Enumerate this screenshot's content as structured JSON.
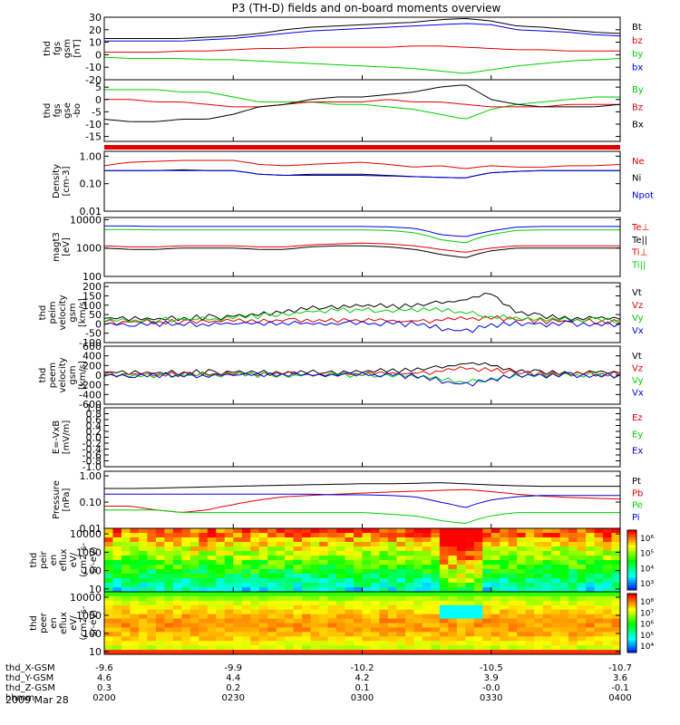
{
  "title": "P3 (TH-D) fields and on-board moments overview",
  "date": "2009 Mar 28",
  "colors": {
    "black": "#000000",
    "red": "#e00000",
    "green": "#00d000",
    "blue": "#0000e0"
  },
  "chart_data": [
    {
      "type": "line",
      "ylabel": [
        "thd",
        "fgs",
        "gsm",
        "[nT]"
      ],
      "ylim": [
        -20,
        30
      ],
      "yticks": [
        "30",
        "20",
        "10",
        "0",
        "-10",
        "-20"
      ],
      "legend": [
        "Bt",
        "bz",
        "by",
        "bx"
      ],
      "series": [
        {
          "name": "Bt",
          "color": "black",
          "values": [
            13,
            13,
            13,
            13,
            14,
            15,
            17,
            20,
            22,
            23,
            24,
            25,
            26,
            28,
            29,
            27,
            23,
            22,
            20,
            18,
            17
          ]
        },
        {
          "name": "bz",
          "color": "red",
          "values": [
            2,
            2,
            2,
            3,
            3,
            4,
            5,
            5,
            6,
            6,
            6,
            6,
            7,
            7,
            6,
            5,
            4,
            4,
            3,
            3,
            3
          ]
        },
        {
          "name": "by",
          "color": "green",
          "values": [
            -2,
            -3,
            -3,
            -3,
            -4,
            -4,
            -5,
            -6,
            -7,
            -8,
            -9,
            -10,
            -11,
            -13,
            -15,
            -12,
            -9,
            -7,
            -5,
            -4,
            -3
          ]
        },
        {
          "name": "bx",
          "color": "blue",
          "values": [
            11,
            11,
            11,
            11,
            12,
            13,
            15,
            17,
            19,
            20,
            21,
            22,
            23,
            24,
            25,
            24,
            20,
            19,
            18,
            16,
            15
          ]
        }
      ]
    },
    {
      "type": "line",
      "ylabel": [
        "thd",
        "fgs",
        "gse",
        "-bo"
      ],
      "ylim": [
        -17,
        8
      ],
      "yticks": [
        "5",
        "0",
        "-5",
        "-10",
        "-15"
      ],
      "legend": [
        "By",
        "Bz",
        "Bx"
      ],
      "series": [
        {
          "name": "By",
          "color": "green",
          "values": [
            4,
            4,
            4,
            3,
            3,
            1,
            -1,
            -1,
            -1,
            -2,
            -2,
            -3,
            -4,
            -6,
            -8,
            -4,
            -2,
            -1,
            0,
            1,
            1
          ]
        },
        {
          "name": "Bz",
          "color": "red",
          "values": [
            0,
            0,
            -1,
            -1,
            -2,
            -3,
            -3,
            -2,
            -1,
            -1,
            -1,
            0,
            -1,
            -1,
            -2,
            -3,
            -3,
            -3,
            -2,
            -2,
            -2
          ]
        },
        {
          "name": "Bx",
          "color": "black",
          "values": [
            -8,
            -9,
            -9,
            -8,
            -8,
            -6,
            -3,
            -2,
            0,
            1,
            1,
            2,
            3,
            5,
            6,
            0,
            -2,
            -3,
            -3,
            -3,
            -2
          ]
        }
      ]
    },
    {
      "type": "line",
      "ylabel": [
        "Density",
        "[cm-3]"
      ],
      "log": true,
      "ylim": [
        0.01,
        1.5
      ],
      "yticks": [
        "1.00",
        "0.10",
        "0.01"
      ],
      "legend": [
        "Ne",
        "Ni",
        "Npot"
      ],
      "series": [
        {
          "name": "Ne",
          "color": "red",
          "values": [
            0.45,
            0.6,
            0.65,
            0.7,
            0.7,
            0.7,
            0.5,
            0.45,
            0.5,
            0.55,
            0.6,
            0.5,
            0.4,
            0.45,
            0.35,
            0.45,
            0.4,
            0.4,
            0.45,
            0.45,
            0.5
          ]
        },
        {
          "name": "Ni",
          "color": "black",
          "values": [
            0.3,
            0.3,
            0.3,
            0.32,
            0.3,
            0.3,
            0.22,
            0.2,
            0.22,
            0.22,
            0.22,
            0.2,
            0.18,
            0.17,
            0.16,
            0.25,
            0.28,
            0.3,
            0.3,
            0.3,
            0.3
          ]
        },
        {
          "name": "Npot",
          "color": "blue",
          "values": [
            0.3,
            0.3,
            0.3,
            0.3,
            0.3,
            0.3,
            0.22,
            0.2,
            0.2,
            0.2,
            0.2,
            0.19,
            0.18,
            0.17,
            0.16,
            0.25,
            0.28,
            0.3,
            0.3,
            0.3,
            0.3
          ]
        }
      ]
    },
    {
      "type": "line",
      "ylabel": [
        "magt3",
        "[eV]"
      ],
      "log": true,
      "ylim": [
        100,
        12000
      ],
      "yticks": [
        "10000",
        "1000",
        "100"
      ],
      "legend": [
        "Te⊥",
        "Te||",
        "Ti⊥",
        "Ti||"
      ],
      "series": [
        {
          "name": "Ti⊥",
          "color": "blue",
          "values": [
            6000,
            6000,
            5800,
            5800,
            5800,
            5800,
            5800,
            5800,
            5800,
            5800,
            5800,
            5600,
            5000,
            3000,
            2500,
            4000,
            5500,
            5800,
            5800,
            5800,
            5800
          ]
        },
        {
          "name": "Ti||",
          "color": "green",
          "values": [
            4500,
            4500,
            4400,
            4400,
            4400,
            4400,
            4400,
            4400,
            4400,
            4400,
            4400,
            4200,
            3500,
            2000,
            1500,
            3000,
            4200,
            4400,
            4400,
            4400,
            4400
          ]
        },
        {
          "name": "Te⊥",
          "color": "red",
          "values": [
            1200,
            1100,
            1100,
            1200,
            1200,
            1200,
            1100,
            1100,
            1300,
            1400,
            1500,
            1400,
            1200,
            900,
            700,
            1000,
            1200,
            1200,
            1200,
            1200,
            1200
          ]
        },
        {
          "name": "Te||",
          "color": "black",
          "values": [
            1000,
            900,
            900,
            1000,
            1000,
            1000,
            900,
            900,
            1100,
            1200,
            1200,
            1100,
            900,
            600,
            450,
            800,
            1000,
            1000,
            1000,
            1000,
            1000
          ]
        }
      ]
    },
    {
      "type": "line",
      "ylabel": [
        "thd",
        "peim",
        "velocity",
        "gsm",
        "[km/s]"
      ],
      "ylim": [
        -100,
        220
      ],
      "yticks": [
        "200",
        "150",
        "100",
        "50",
        "0",
        "-50",
        "-100"
      ],
      "legend": [
        "Vt",
        "Vz",
        "Vy",
        "Vx"
      ],
      "series": [
        {
          "name": "Vt",
          "color": "black",
          "values": [
            30,
            30,
            30,
            32,
            35,
            40,
            50,
            70,
            85,
            95,
            100,
            90,
            95,
            110,
            130,
            160,
            60,
            40,
            35,
            30,
            30
          ]
        },
        {
          "name": "Vz",
          "color": "red",
          "values": [
            10,
            10,
            10,
            12,
            12,
            15,
            15,
            15,
            20,
            20,
            20,
            15,
            15,
            20,
            30,
            30,
            20,
            15,
            12,
            10,
            10
          ]
        },
        {
          "name": "Vy",
          "color": "green",
          "values": [
            20,
            20,
            20,
            25,
            25,
            30,
            40,
            55,
            65,
            70,
            75,
            70,
            75,
            80,
            60,
            40,
            30,
            25,
            20,
            20,
            20
          ]
        },
        {
          "name": "Vx",
          "color": "blue",
          "values": [
            0,
            0,
            0,
            0,
            0,
            0,
            0,
            0,
            0,
            0,
            0,
            0,
            0,
            -20,
            -40,
            -10,
            0,
            0,
            0,
            0,
            0
          ]
        }
      ]
    },
    {
      "type": "line",
      "ylabel": [
        "thd",
        "peem",
        "velocity",
        "gsm",
        "[km/s]"
      ],
      "ylim": [
        -600,
        600
      ],
      "yticks": [
        "600",
        "400",
        "200",
        "0",
        "-200",
        "-400",
        "-600"
      ],
      "legend": [
        "Vt",
        "Vz",
        "Vy",
        "Vx"
      ],
      "series": [
        {
          "name": "Vt",
          "color": "black",
          "values": [
            60,
            60,
            60,
            60,
            60,
            60,
            60,
            60,
            70,
            70,
            80,
            80,
            100,
            150,
            250,
            200,
            80,
            60,
            60,
            60,
            60
          ]
        },
        {
          "name": "Vz",
          "color": "red",
          "values": [
            20,
            20,
            20,
            20,
            20,
            20,
            20,
            20,
            20,
            20,
            30,
            30,
            40,
            80,
            150,
            100,
            40,
            20,
            20,
            20,
            20
          ]
        },
        {
          "name": "Vy",
          "color": "green",
          "values": [
            0,
            0,
            0,
            0,
            0,
            0,
            0,
            0,
            0,
            0,
            0,
            0,
            -20,
            -60,
            -150,
            -80,
            -10,
            0,
            0,
            0,
            0
          ]
        },
        {
          "name": "Vx",
          "color": "blue",
          "values": [
            0,
            0,
            0,
            0,
            0,
            0,
            0,
            0,
            0,
            0,
            0,
            0,
            -20,
            -100,
            -200,
            -100,
            -10,
            0,
            0,
            0,
            0
          ]
        }
      ]
    },
    {
      "type": "line",
      "ylabel": [
        "E=-VxB",
        "[mV/m]"
      ],
      "ylim": [
        -1.0,
        1.0
      ],
      "yticks": [
        "1.0",
        "0.8",
        "0.6",
        "0.4",
        "0.2",
        "0.0",
        "-0.2",
        "-0.4",
        "-0.6",
        "-0.8",
        "-1.0"
      ],
      "legend": [
        "Ez",
        "Ey",
        "Ex"
      ],
      "series": []
    },
    {
      "type": "line",
      "ylabel": [
        "Pressure",
        "[nPa]"
      ],
      "log": true,
      "ylim": [
        0.01,
        1.5
      ],
      "yticks": [
        "1.00",
        "0.10",
        "0.01"
      ],
      "legend": [
        "Pt",
        "Pb",
        "Pe",
        "Pi"
      ],
      "series": [
        {
          "name": "Pt",
          "color": "black",
          "values": [
            0.33,
            0.33,
            0.34,
            0.36,
            0.38,
            0.4,
            0.42,
            0.44,
            0.46,
            0.48,
            0.5,
            0.5,
            0.52,
            0.55,
            0.5,
            0.45,
            0.42,
            0.4,
            0.4,
            0.4,
            0.4
          ]
        },
        {
          "name": "Pb",
          "color": "red",
          "values": [
            0.07,
            0.07,
            0.05,
            0.04,
            0.05,
            0.08,
            0.12,
            0.16,
            0.18,
            0.2,
            0.22,
            0.24,
            0.26,
            0.28,
            0.3,
            0.25,
            0.2,
            0.17,
            0.15,
            0.14,
            0.13
          ]
        },
        {
          "name": "Pe",
          "color": "green",
          "values": [
            0.05,
            0.05,
            0.05,
            0.04,
            0.04,
            0.04,
            0.04,
            0.04,
            0.04,
            0.04,
            0.04,
            0.035,
            0.03,
            0.02,
            0.015,
            0.03,
            0.04,
            0.04,
            0.04,
            0.04,
            0.04
          ]
        },
        {
          "name": "Pi",
          "color": "blue",
          "values": [
            0.2,
            0.2,
            0.2,
            0.2,
            0.2,
            0.2,
            0.2,
            0.2,
            0.2,
            0.19,
            0.19,
            0.18,
            0.16,
            0.1,
            0.06,
            0.12,
            0.16,
            0.18,
            0.18,
            0.18,
            0.18
          ]
        }
      ]
    },
    {
      "type": "heatmap",
      "ylabel": [
        "thd",
        "peir",
        "en",
        "eflux",
        "eV/",
        "(cm2-s-",
        "sr-eV)"
      ],
      "log": true,
      "ylim": [
        7,
        20000
      ],
      "yticks": [
        "10000",
        "1000",
        "100",
        "10"
      ],
      "colorbar": {
        "ticks": [
          "10⁶",
          "10⁵",
          "10⁴",
          "10³"
        ]
      }
    },
    {
      "type": "heatmap",
      "ylabel": [
        "thd",
        "peer",
        "en",
        "eflux",
        "eV/",
        "(cm2-s-",
        "sr-eV)"
      ],
      "log": true,
      "ylim": [
        7,
        20000
      ],
      "yticks": [
        "10000",
        "1000",
        "100",
        "10"
      ],
      "colorbar": {
        "ticks": [
          "10⁸",
          "10⁷",
          "10⁶",
          "10⁵",
          "10⁴"
        ]
      }
    }
  ],
  "xaxis": {
    "ticks": [
      {
        "x": "-9.6",
        "y": "4.6",
        "z": "0.3",
        "t": "0200"
      },
      {
        "x": "-9.9",
        "y": "4.4",
        "z": "0.2",
        "t": "0230"
      },
      {
        "x": "-10.2",
        "y": "4.2",
        "z": "0.1",
        "t": "0300"
      },
      {
        "x": "-10.5",
        "y": "3.9",
        "z": "-0.0",
        "t": "0330"
      },
      {
        "x": "-10.7",
        "y": "3.6",
        "z": "-0.1",
        "t": "0400"
      }
    ],
    "row_labels": [
      "thd_X-GSM",
      "thd_Y-GSM",
      "thd_Z-GSM",
      "hhmm"
    ]
  }
}
